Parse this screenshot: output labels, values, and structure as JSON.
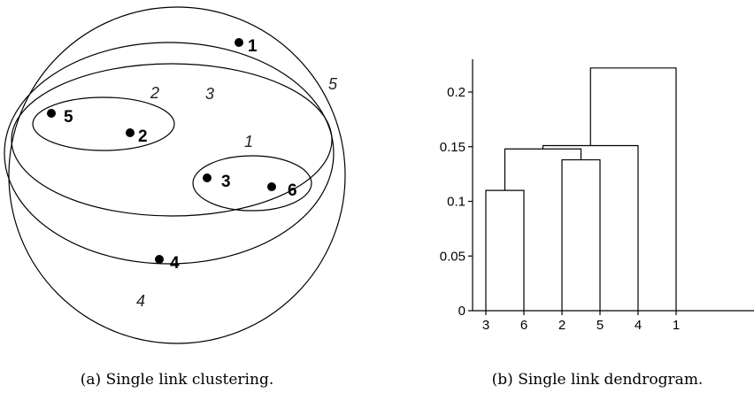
{
  "left_panel": {
    "caption": "(a) Single link clustering.",
    "points": [
      {
        "label": "1"
      },
      {
        "label": "2"
      },
      {
        "label": "3"
      },
      {
        "label": "4"
      },
      {
        "label": "5"
      },
      {
        "label": "6"
      }
    ],
    "cluster_labels": [
      "1",
      "2",
      "3",
      "4",
      "5"
    ]
  },
  "right_panel": {
    "caption": "(b) Single link dendrogram.",
    "y_tick_labels": [
      "0",
      "0.05",
      "0.1",
      "0.15",
      "0.2"
    ],
    "x_tick_labels": [
      "3",
      "6",
      "2",
      "5",
      "4",
      "1"
    ]
  },
  "chart_data": {
    "type": "dendrogram",
    "leaf_order": [
      "3",
      "6",
      "2",
      "5",
      "4",
      "1"
    ],
    "yticks": [
      0,
      0.05,
      0.1,
      0.15,
      0.2
    ],
    "ylim": [
      0,
      0.23
    ],
    "merges": [
      {
        "left": "3",
        "right": "6",
        "height": 0.11
      },
      {
        "left": "2",
        "right": "5",
        "height": 0.138
      },
      {
        "left": "{3,6}",
        "right": "{2,5}",
        "height": 0.148
      },
      {
        "left": "{2,3,5,6}",
        "right": "4",
        "height": 0.151
      },
      {
        "left": "{2,3,4,5,6}",
        "right": "1",
        "height": 0.222
      }
    ]
  }
}
